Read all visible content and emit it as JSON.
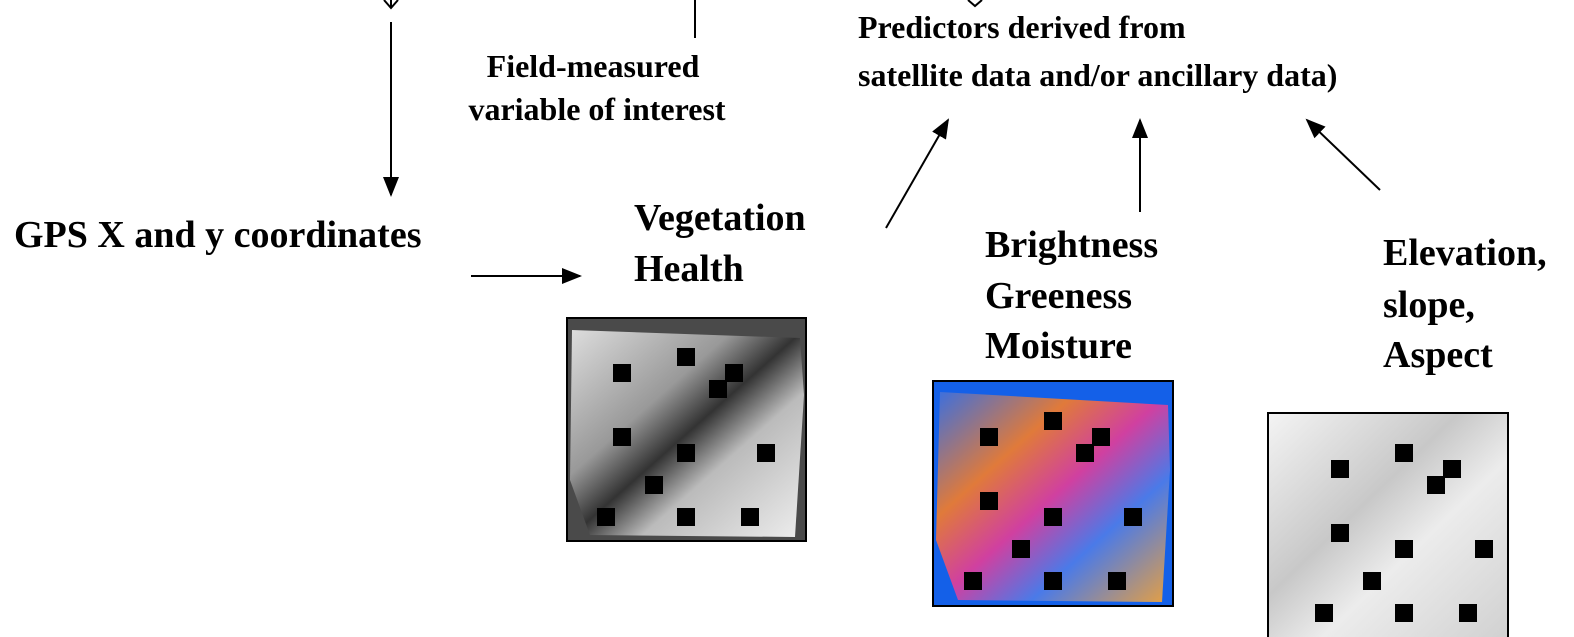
{
  "field_measured": {
    "lines": [
      "Field-measured",
      "variable of interest"
    ]
  },
  "predictors": {
    "lines": [
      "Predictors derived from",
      "satellite data and/or ancillary data)"
    ]
  },
  "gps": {
    "label": "GPS X and y coordinates"
  },
  "vegetation": {
    "lines": [
      "Vegetation",
      "Health"
    ]
  },
  "tasseled_cap": {
    "lines": [
      "Brightness",
      "Greeness",
      "Moisture"
    ]
  },
  "terrain": {
    "lines": [
      "Elevation,",
      "slope,",
      "Aspect"
    ]
  }
}
